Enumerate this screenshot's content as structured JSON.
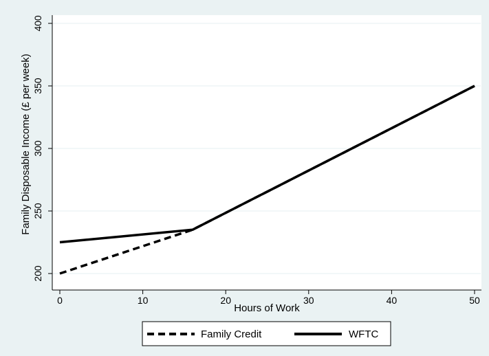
{
  "chart_data": {
    "type": "line",
    "xlabel": "Hours of Work",
    "ylabel": "Family Disposable Income (£ per week)",
    "xlim": [
      0,
      50
    ],
    "ylim": [
      200,
      400
    ],
    "x_ticks": [
      0,
      10,
      20,
      30,
      40,
      50
    ],
    "y_ticks": [
      200,
      250,
      300,
      350,
      400
    ],
    "grid": "horizontal",
    "legend_position": "bottom",
    "series": [
      {
        "name": "Family Credit",
        "style": "dashed",
        "color": "#000000",
        "x": [
          0,
          16,
          50
        ],
        "y": [
          200,
          235,
          350
        ]
      },
      {
        "name": "WFTC",
        "style": "solid",
        "color": "#000000",
        "x": [
          0,
          16,
          50
        ],
        "y": [
          225,
          235,
          350
        ]
      }
    ]
  },
  "colors": {
    "background": "#eaf2f3",
    "plot_area": "#ffffff",
    "grid": "#eaf2f3"
  }
}
